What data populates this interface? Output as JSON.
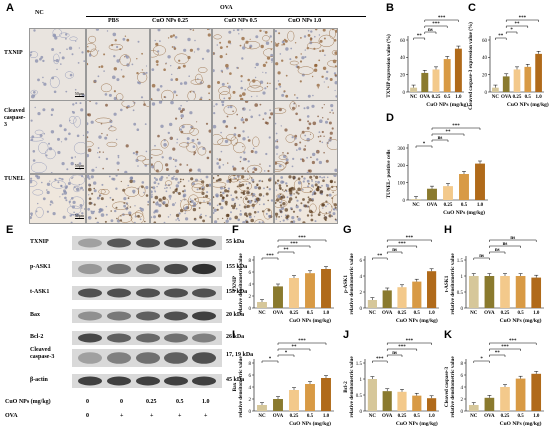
{
  "panel_letters": [
    "A",
    "B",
    "C",
    "D",
    "E",
    "F",
    "G",
    "H",
    "I",
    "J",
    "K"
  ],
  "panelA": {
    "nc_label": "NC",
    "ova_label": "OVA",
    "groups": [
      "PBS",
      "CuO NPs 0.25",
      "CuO NPs 0.5",
      "CuO NPs 1.0"
    ],
    "rows": [
      "TXNIP",
      "Cleaved caspase-3",
      "TUNEL"
    ],
    "scalebar": "50μm"
  },
  "panelE": {
    "proteins": [
      "TXNIP",
      "p-ASK1",
      "t-ASK1",
      "Bax",
      "Bcl-2",
      "Cleaved caspase-3",
      "β-actin"
    ],
    "sizes": [
      "55 kDa",
      "155 kDa",
      "155 kDa",
      "20 kDa",
      "26 kDa",
      "17, 19 kDa",
      "45 kDa"
    ],
    "dose_label": "CuO NPs (mg/kg)",
    "dose_values": [
      "0",
      "0",
      "0.25",
      "0.5",
      "1.0"
    ],
    "ova_label": "OVA",
    "ova_values": [
      "0",
      "+",
      "+",
      "+",
      "+"
    ]
  },
  "colors": {
    "NC": "#d6c79a",
    "OVA": "#8a7a2e",
    "c025": "#f3c98b",
    "c05": "#d89a45",
    "c10": "#b06a1a"
  },
  "chart_data": [
    {
      "id": "B",
      "type": "bar",
      "categories": [
        "NC",
        "OVA",
        "0.25",
        "0.5",
        "1.0"
      ],
      "values": [
        5,
        22,
        26,
        38,
        50
      ],
      "ylim": [
        0,
        60
      ],
      "yticks": [
        0,
        20,
        40,
        60
      ],
      "ylabel": "TXNIP expression value (%)",
      "xlabel": "CuO NPs (mg/kg)",
      "sig": [
        "**",
        "ns",
        "***",
        "***"
      ]
    },
    {
      "id": "C",
      "type": "bar",
      "categories": [
        "NC",
        "OVA",
        "0.25",
        "0.5",
        "1.0"
      ],
      "values": [
        5,
        18,
        26,
        29,
        44
      ],
      "ylim": [
        0,
        60
      ],
      "yticks": [
        0,
        20,
        40,
        60
      ],
      "ylabel": "Cleaved caspase-3 expression value (%)",
      "xlabel": "CuO NPs (mg/kg)",
      "sig": [
        "**",
        "*",
        "**",
        "***"
      ]
    },
    {
      "id": "D",
      "type": "bar",
      "categories": [
        "NC",
        "OVA",
        "0.25",
        "0.5",
        "1.0"
      ],
      "values": [
        5,
        65,
        80,
        150,
        210
      ],
      "ylim": [
        0,
        300
      ],
      "yticks": [
        0,
        100,
        200,
        300
      ],
      "ylabel": "TUNEL- positive cells",
      "xlabel": "CuO NPs (mg/kg)",
      "sig": [
        "*",
        "ns",
        "**",
        "***"
      ]
    },
    {
      "id": "F",
      "type": "bar",
      "categories": [
        "NC",
        "OVA",
        "0.25",
        "0.5",
        "1.0"
      ],
      "values": [
        1.0,
        3.6,
        5.0,
        5.8,
        6.5
      ],
      "ylim": [
        0,
        8
      ],
      "yticks": [
        0,
        2,
        4,
        6,
        8
      ],
      "ylabel": "TXNIP relative densitometric value",
      "xlabel": "CuO NPs (mg/kg)",
      "sig": [
        "***",
        "**",
        "***",
        "***"
      ]
    },
    {
      "id": "G",
      "type": "bar",
      "categories": [
        "NC",
        "OVA",
        "0.25",
        "0.5",
        "1.0"
      ],
      "values": [
        1.0,
        2.2,
        2.6,
        3.3,
        4.6
      ],
      "ylim": [
        0,
        6
      ],
      "yticks": [
        0,
        2,
        4,
        6
      ],
      "ylabel": "p-ASK1 relative densitometric value",
      "xlabel": "CuO NPs (mg/kg)",
      "sig": [
        "**",
        "ns",
        "***",
        "***"
      ]
    },
    {
      "id": "H",
      "type": "bar",
      "categories": [
        "NC",
        "OVA",
        "0.25",
        "0.5",
        "1.0"
      ],
      "values": [
        1.0,
        1.0,
        1.0,
        1.0,
        0.95
      ],
      "ylim": [
        0,
        1.5
      ],
      "yticks": [
        0,
        0.5,
        1.0,
        1.5
      ],
      "ylabel": "t-ASK1 relative densitometric value",
      "xlabel": "CuO NPs (mg/kg)",
      "sig": [
        "ns",
        "ns",
        "ns",
        "ns"
      ]
    },
    {
      "id": "I",
      "type": "bar",
      "categories": [
        "NC",
        "OVA",
        "0.25",
        "0.5",
        "1.0"
      ],
      "values": [
        1.0,
        2.0,
        3.5,
        4.5,
        5.5
      ],
      "ylim": [
        0,
        8
      ],
      "yticks": [
        0,
        2,
        4,
        6,
        8
      ],
      "ylabel": "Bax relative densitometric value",
      "xlabel": "CuO NPs (mg/kg)",
      "sig": [
        "*",
        "*",
        "**",
        "***"
      ]
    },
    {
      "id": "J",
      "type": "bar",
      "categories": [
        "NC",
        "OVA",
        "0.25",
        "0.5",
        "1.0"
      ],
      "values": [
        1.0,
        0.62,
        0.6,
        0.48,
        0.4
      ],
      "ylim": [
        0,
        1.5
      ],
      "yticks": [
        0,
        0.5,
        1.0,
        1.5
      ],
      "ylabel": "Bcl-2 relative densitometric value",
      "xlabel": "CuO NPs (mg/kg)",
      "sig": [
        "***",
        "ns",
        "***",
        "***"
      ]
    },
    {
      "id": "K",
      "type": "bar",
      "categories": [
        "NC",
        "OVA",
        "0.25",
        "0.5",
        "1.0"
      ],
      "values": [
        1.0,
        2.2,
        4.0,
        5.4,
        6.2
      ],
      "ylim": [
        0,
        8
      ],
      "yticks": [
        0,
        2,
        4,
        6,
        8
      ],
      "ylabel": "Cleaved caspase-3 relative densitometric value",
      "xlabel": "CuO NPs (mg/kg)",
      "sig": [
        "*",
        "**",
        "***",
        "***"
      ]
    }
  ]
}
